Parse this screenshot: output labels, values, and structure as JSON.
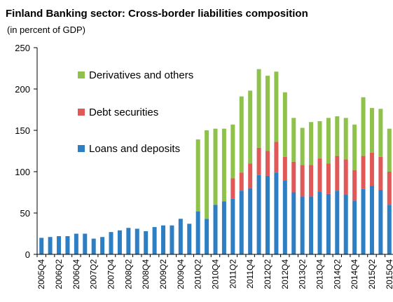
{
  "chart_data": {
    "type": "bar",
    "stacked": true,
    "title": "Finland Banking sector: Cross-border liabilities composition",
    "subtitle": "(in percent of GDP)",
    "ylim": [
      0,
      250
    ],
    "yticks": [
      0,
      50,
      100,
      150,
      200,
      250
    ],
    "grid": false,
    "legend_position": "top-left inside plot",
    "categories": [
      "2005Q4",
      "2006Q1",
      "2006Q2",
      "2006Q3",
      "2006Q4",
      "2007Q1",
      "2007Q2",
      "2007Q3",
      "2007Q4",
      "2008Q1",
      "2008Q2",
      "2008Q3",
      "2008Q4",
      "2009Q1",
      "2009Q2",
      "2009Q3",
      "2009Q4",
      "2010Q1",
      "2010Q2",
      "2010Q3",
      "2010Q4",
      "2011Q1",
      "2011Q2",
      "2011Q3",
      "2011Q4",
      "2012Q1",
      "2012Q2",
      "2012Q3",
      "2012Q4",
      "2013Q1",
      "2013Q2",
      "2013Q3",
      "2013Q4",
      "2014Q1",
      "2014Q2",
      "2014Q3",
      "2014Q4",
      "2015Q1",
      "2015Q2",
      "2015Q3",
      "2015Q4"
    ],
    "xtick_labels": [
      "2005Q4",
      "2006Q2",
      "2006Q4",
      "2007Q2",
      "2007Q4",
      "2008Q2",
      "2008Q4",
      "2009Q2",
      "2009Q4",
      "2010Q2",
      "2010Q4",
      "2011Q2",
      "2011Q4",
      "2012Q2",
      "2012Q4",
      "2013Q2",
      "2013Q4",
      "2014Q2",
      "2014Q4",
      "2015Q2",
      "2015Q4"
    ],
    "series": [
      {
        "name": "Loans and deposits",
        "color": "#2E7EC4",
        "values": [
          20,
          21,
          22,
          22,
          25,
          25,
          19,
          21,
          27,
          29,
          32,
          31,
          28,
          33,
          35,
          35,
          43,
          37,
          52,
          43,
          60,
          64,
          67,
          77,
          80,
          96,
          95,
          99,
          89,
          75,
          70,
          70,
          76,
          73,
          77,
          72,
          65,
          79,
          83,
          78,
          60
        ]
      },
      {
        "name": "Debt securities",
        "color": "#E15858",
        "values": [
          0,
          0,
          0,
          0,
          0,
          0,
          0,
          0,
          0,
          0,
          0,
          0,
          0,
          0,
          0,
          0,
          0,
          0,
          0,
          0,
          0,
          0,
          25,
          22,
          30,
          33,
          30,
          37,
          29,
          37,
          38,
          38,
          40,
          37,
          42,
          43,
          37,
          40,
          40,
          40,
          40
        ]
      },
      {
        "name": "Derivatives and others",
        "color": "#8FC24A",
        "values": [
          0,
          0,
          0,
          0,
          0,
          0,
          0,
          0,
          0,
          0,
          0,
          0,
          0,
          0,
          0,
          0,
          0,
          0,
          87,
          107,
          92,
          88,
          65,
          92,
          88,
          95,
          91,
          85,
          78,
          53,
          45,
          52,
          45,
          55,
          48,
          50,
          55,
          71,
          54,
          58,
          52
        ]
      }
    ]
  }
}
